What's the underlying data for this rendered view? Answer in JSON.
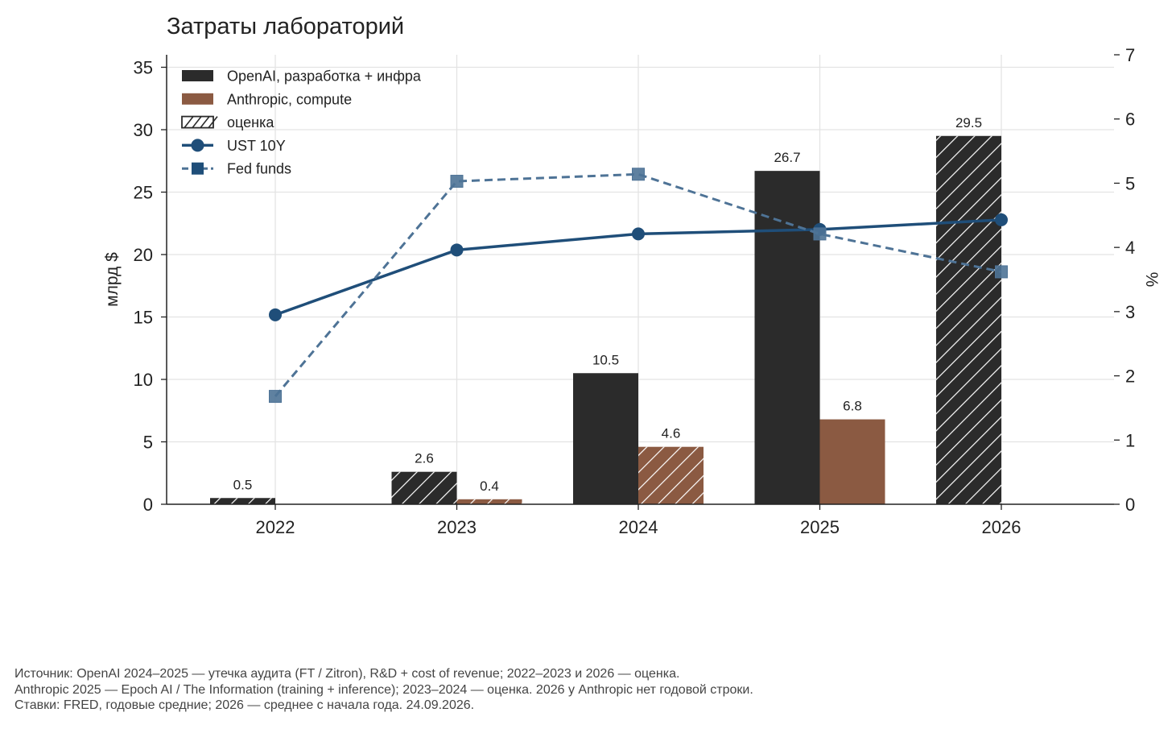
{
  "chart_data": {
    "type": "bar",
    "title": "Затраты лабораторий",
    "categories": [
      "2022",
      "2023",
      "2024",
      "2025",
      "2026"
    ],
    "ylabel": "млрд $",
    "y2label": "%",
    "ylim": [
      0,
      36
    ],
    "y2lim": [
      0,
      7
    ],
    "yticks": [
      "0",
      "5",
      "10",
      "15",
      "20",
      "25",
      "30",
      "35"
    ],
    "y2ticks": [
      "0",
      "1",
      "2",
      "3",
      "4",
      "5",
      "6",
      "7"
    ],
    "grid": true,
    "legend_position": "top-left",
    "series": [
      {
        "name": "OpenAI, разработка + инфра",
        "kind": "bar",
        "color": "#2b2b2b",
        "values": [
          0.5,
          2.6,
          10.5,
          26.7,
          29.5
        ],
        "labels": [
          "0.5",
          "2.6",
          "10.5",
          "26.7",
          "29.5"
        ],
        "estimated": [
          true,
          true,
          false,
          false,
          true
        ]
      },
      {
        "name": "Anthropic, compute",
        "kind": "bar",
        "color": "#8b5a42",
        "values": [
          null,
          0.4,
          4.6,
          6.8,
          null
        ],
        "labels": [
          "",
          "0.4",
          "4.6",
          "6.8",
          ""
        ],
        "estimated": [
          false,
          true,
          true,
          false,
          false
        ]
      },
      {
        "name": "UST 10Y",
        "kind": "line",
        "axis": "right",
        "style": "solid",
        "marker": "circle",
        "color": "#1f4e79",
        "values": [
          2.95,
          3.96,
          4.21,
          4.28,
          4.43
        ]
      },
      {
        "name": "Fed funds",
        "kind": "line",
        "axis": "right",
        "style": "dashed",
        "marker": "square",
        "color": "#4e7396",
        "values": [
          1.68,
          5.03,
          5.14,
          4.21,
          3.62
        ]
      }
    ],
    "legend": [
      {
        "label": "OpenAI, разработка + инфра",
        "swatch": "solid-dark"
      },
      {
        "label": "Anthropic, compute",
        "swatch": "solid-brown"
      },
      {
        "label": "оценка",
        "swatch": "hatched"
      },
      {
        "label": "UST 10Y",
        "swatch": "line-circle"
      },
      {
        "label": "Fed funds",
        "swatch": "dashed-square"
      }
    ]
  },
  "footnote": [
    "Источник: OpenAI 2024–2025 — утечка аудита (FT / Zitron), R&D + cost of revenue; 2022–2023 и 2026 — оценка.",
    "Anthropic 2025 — Epoch AI / The Information (training + inference); 2023–2024 — оценка. 2026 у Anthropic нет годовой строки.",
    "Ставки: FRED, годовые средние; 2026 — среднее с начала года. 24.09.2026."
  ]
}
